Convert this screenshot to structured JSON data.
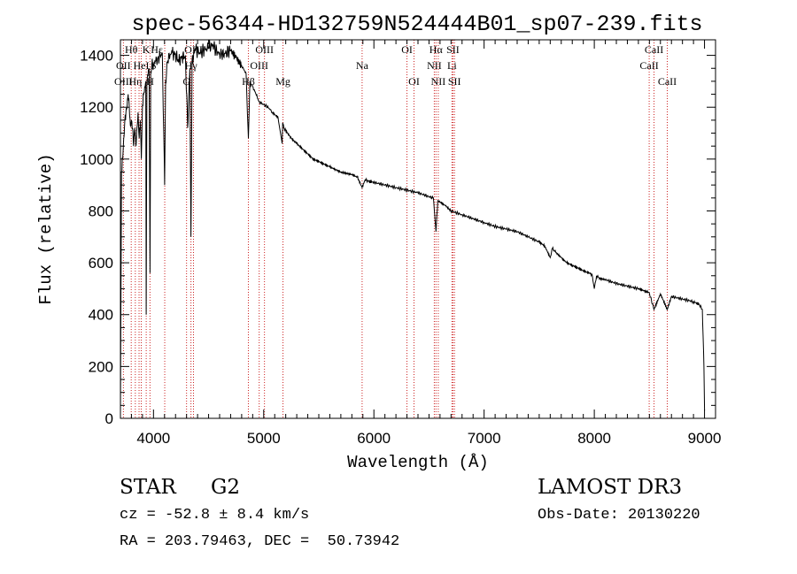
{
  "chart_data": {
    "type": "line",
    "title": "spec-56344-HD132759N524444B01_sp07-239.fits",
    "xlabel": "Wavelength (Å)",
    "ylabel": "Flux (relative)",
    "xlim": [
      3700,
      9100
    ],
    "ylim": [
      0,
      1460
    ],
    "xticks": [
      4000,
      5000,
      6000,
      7000,
      8000,
      9000
    ],
    "yticks": [
      0,
      200,
      400,
      600,
      800,
      1000,
      1200,
      1400
    ],
    "grid": false,
    "series": [
      {
        "name": "spectrum",
        "x": [
          3700,
          3710,
          3720,
          3730,
          3740,
          3750,
          3760,
          3770,
          3780,
          3790,
          3800,
          3810,
          3820,
          3830,
          3840,
          3850,
          3860,
          3870,
          3880,
          3890,
          3900,
          3910,
          3920,
          3930,
          3934,
          3940,
          3950,
          3960,
          3968,
          3975,
          3985,
          4000,
          4020,
          4040,
          4060,
          4080,
          4101,
          4110,
          4130,
          4150,
          4170,
          4200,
          4230,
          4260,
          4290,
          4310,
          4330,
          4340,
          4350,
          4380,
          4420,
          4460,
          4500,
          4540,
          4580,
          4620,
          4660,
          4700,
          4750,
          4800,
          4840,
          4861,
          4875,
          4900,
          4930,
          4960,
          5000,
          5040,
          5080,
          5130,
          5167,
          5172,
          5183,
          5200,
          5250,
          5300,
          5350,
          5400,
          5450,
          5500,
          5550,
          5600,
          5650,
          5700,
          5750,
          5800,
          5850,
          5893,
          5920,
          5950,
          6000,
          6100,
          6200,
          6300,
          6400,
          6500,
          6540,
          6563,
          6580,
          6650,
          6700,
          6800,
          6900,
          7000,
          7100,
          7200,
          7300,
          7400,
          7500,
          7550,
          7600,
          7620,
          7650,
          7700,
          7750,
          7800,
          7850,
          7900,
          7950,
          7980,
          8000,
          8020,
          8050,
          8100,
          8200,
          8300,
          8400,
          8498,
          8542,
          8600,
          8662,
          8700,
          8800,
          8900,
          8950,
          8980,
          8995,
          9000
        ],
        "values": [
          20,
          950,
          1000,
          1080,
          1150,
          1180,
          1200,
          1250,
          1200,
          1130,
          1150,
          1120,
          1050,
          1120,
          1050,
          1120,
          1180,
          1080,
          1150,
          1000,
          1210,
          1250,
          1280,
          1300,
          400,
          1300,
          1320,
          1350,
          560,
          1340,
          1360,
          1370,
          1380,
          1390,
          1400,
          1410,
          900,
          1300,
          1380,
          1400,
          1410,
          1400,
          1380,
          1390,
          1400,
          1120,
          1350,
          700,
          1380,
          1420,
          1410,
          1420,
          1430,
          1440,
          1410,
          1400,
          1410,
          1420,
          1390,
          1360,
          1330,
          1080,
          1300,
          1280,
          1250,
          1220,
          1210,
          1200,
          1180,
          1160,
          1060,
          1140,
          1120,
          1110,
          1080,
          1060,
          1040,
          1020,
          1000,
          990,
          980,
          970,
          960,
          950,
          945,
          940,
          930,
          890,
          920,
          915,
          910,
          900,
          890,
          880,
          870,
          855,
          850,
          720,
          840,
          820,
          800,
          785,
          770,
          755,
          740,
          730,
          720,
          700,
          680,
          665,
          620,
          655,
          640,
          620,
          600,
          590,
          580,
          570,
          560,
          555,
          500,
          550,
          540,
          535,
          520,
          510,
          500,
          485,
          420,
          480,
          420,
          470,
          460,
          450,
          440,
          420,
          200,
          30
        ]
      }
    ],
    "line_labels_row1": [
      {
        "text": "Hθ",
        "x": 3798
      },
      {
        "text": "K",
        "x": 3934
      },
      {
        "text": "Hε",
        "x": 4030
      },
      {
        "text": "OIII",
        "x": 4363
      },
      {
        "text": "OIII",
        "x": 5007
      },
      {
        "text": "OI",
        "x": 6300
      },
      {
        "text": "Hα",
        "x": 6563
      },
      {
        "text": "SII",
        "x": 6717
      },
      {
        "text": "CaII",
        "x": 8542
      }
    ],
    "line_labels_row2": [
      {
        "text": "OII",
        "x": 3727
      },
      {
        "text": "HeI",
        "x": 3889
      },
      {
        "text": "S",
        "x": 4000
      },
      {
        "text": "Hγ",
        "x": 4340
      },
      {
        "text": "OIII",
        "x": 4959
      },
      {
        "text": "Na",
        "x": 5893
      },
      {
        "text": "NII",
        "x": 6548
      },
      {
        "text": "Li",
        "x": 6708
      },
      {
        "text": "CaII",
        "x": 8498
      }
    ],
    "line_labels_row3": [
      {
        "text": "OIII",
        "x": 3727
      },
      {
        "text": "Hη",
        "x": 3835
      },
      {
        "text": "H",
        "x": 3970
      },
      {
        "text": "G",
        "x": 4300
      },
      {
        "text": "Hβ",
        "x": 4861
      },
      {
        "text": "Mg",
        "x": 5175
      },
      {
        "text": "OI",
        "x": 6364
      },
      {
        "text": "NII",
        "x": 6584
      },
      {
        "text": "SII",
        "x": 6731
      },
      {
        "text": "CaII",
        "x": 8662
      }
    ],
    "marker_lines": [
      3727,
      3798,
      3835,
      3869,
      3889,
      3934,
      3968,
      4102,
      4300,
      4340,
      4363,
      4861,
      4959,
      5007,
      5175,
      5893,
      6300,
      6364,
      6548,
      6563,
      6584,
      6708,
      6717,
      6731,
      8498,
      8542,
      8662
    ]
  },
  "info": {
    "object_class": "STAR",
    "subclass": "G2",
    "survey": "LAMOST DR3",
    "cz": "cz = -52.8 ± 8.4 km/s",
    "obs_date": "Obs-Date: 20130220",
    "coords": "RA = 203.79463, DEC =  50.73942"
  },
  "colors": {
    "spectrum": "#000000",
    "markers": "#cc2222",
    "axes": "#000000"
  }
}
